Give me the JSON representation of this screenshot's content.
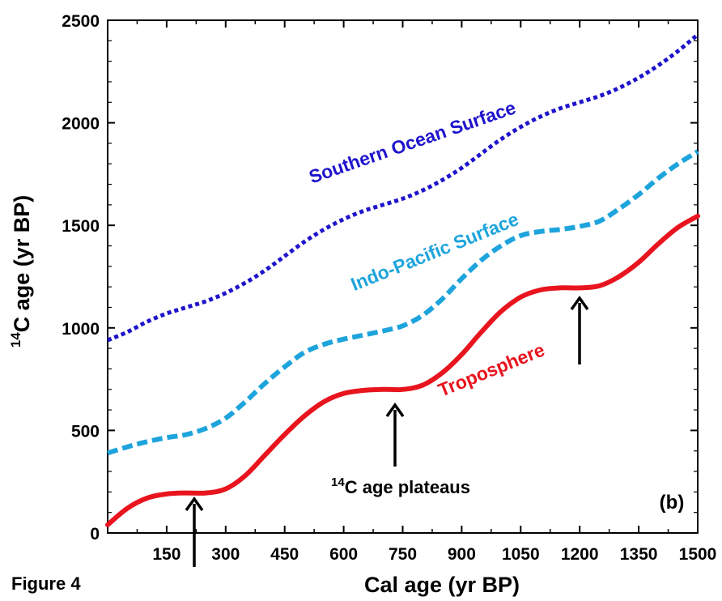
{
  "figure_label": "Figure 4",
  "chart_data": {
    "type": "line",
    "xlabel": "Cal age (yr BP)",
    "ylabel_sup": "14",
    "ylabel_rest": "C age (yr BP)",
    "xlim": [
      0,
      1500
    ],
    "ylim": [
      0,
      2500
    ],
    "xticks": [
      150,
      300,
      450,
      600,
      750,
      900,
      1050,
      1200,
      1350,
      1500
    ],
    "yticks": [
      0,
      500,
      1000,
      1500,
      2000,
      2500
    ],
    "grid": false,
    "legend": "none",
    "panel_label": "(b)",
    "annotation": {
      "sup": "14",
      "text": "C age plateaus"
    },
    "series": [
      {
        "name": "Southern Ocean Surface",
        "color": "#1f14cc",
        "style": "dotted",
        "x": [
          0,
          50,
          100,
          150,
          200,
          250,
          300,
          350,
          400,
          450,
          500,
          550,
          600,
          650,
          700,
          750,
          800,
          850,
          900,
          950,
          1000,
          1050,
          1100,
          1150,
          1200,
          1250,
          1300,
          1350,
          1400,
          1450,
          1500
        ],
        "y": [
          940,
          980,
          1030,
          1070,
          1100,
          1130,
          1170,
          1220,
          1280,
          1350,
          1420,
          1480,
          1530,
          1570,
          1600,
          1630,
          1670,
          1720,
          1780,
          1850,
          1920,
          1980,
          2030,
          2070,
          2100,
          2130,
          2170,
          2220,
          2280,
          2350,
          2430
        ]
      },
      {
        "name": "Indo-Pacific Surface",
        "color": "#1ea4dc",
        "style": "dashed",
        "x": [
          0,
          50,
          100,
          150,
          200,
          250,
          300,
          350,
          400,
          450,
          500,
          550,
          600,
          650,
          700,
          750,
          800,
          850,
          900,
          950,
          1000,
          1050,
          1100,
          1150,
          1200,
          1250,
          1300,
          1350,
          1400,
          1450,
          1500
        ],
        "y": [
          390,
          420,
          445,
          465,
          480,
          510,
          560,
          640,
          730,
          810,
          880,
          920,
          945,
          965,
          985,
          1010,
          1060,
          1140,
          1240,
          1330,
          1400,
          1450,
          1470,
          1480,
          1495,
          1520,
          1580,
          1650,
          1730,
          1800,
          1860
        ]
      },
      {
        "name": "Troposphere",
        "color": "#e8141e",
        "style": "solid",
        "x": [
          0,
          50,
          100,
          150,
          200,
          250,
          300,
          350,
          400,
          450,
          500,
          550,
          600,
          650,
          700,
          750,
          800,
          850,
          900,
          950,
          1000,
          1050,
          1100,
          1150,
          1200,
          1250,
          1300,
          1350,
          1400,
          1450,
          1500
        ],
        "y": [
          40,
          120,
          170,
          190,
          195,
          195,
          215,
          280,
          380,
          480,
          570,
          640,
          680,
          695,
          700,
          700,
          720,
          780,
          870,
          980,
          1080,
          1150,
          1185,
          1195,
          1195,
          1205,
          1250,
          1320,
          1410,
          1490,
          1545
        ]
      }
    ]
  }
}
